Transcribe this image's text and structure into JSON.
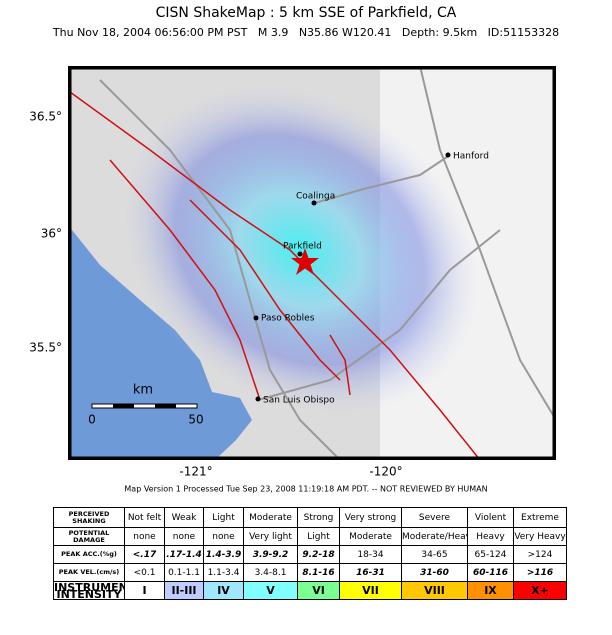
{
  "header": {
    "title": "CISN ShakeMap :   5 km SSE of Parkfield, CA",
    "subtitle": "Thu Nov 18, 2004 06:56:00 PM PST   M 3.9   N35.86 W120.41   Depth: 9.5km   ID:51153328"
  },
  "map": {
    "lat_labels": [
      "36.5°",
      "36°",
      "35.5°"
    ],
    "lon_labels": [
      "-121°",
      "-120°"
    ],
    "cities": [
      "Hanford",
      "Coalinga",
      "Parkfield",
      "Paso Robles",
      "San Luis Obispo"
    ],
    "scale": {
      "unit": "km",
      "start": "0",
      "end": "50"
    }
  },
  "footer": "Map Version 1 Processed Tue Sep 23, 2008 11:19:18 AM PDT. -- NOT REVIEWED BY HUMAN",
  "legend_table": {
    "rows": [
      [
        "PERCEIVED SHAKING",
        "Not felt",
        "Weak",
        "Light",
        "Moderate",
        "Strong",
        "Very strong",
        "Severe",
        "Violent",
        "Extreme"
      ],
      [
        "POTENTIAL DAMAGE",
        "none",
        "none",
        "none",
        "Very light",
        "Light",
        "Moderate",
        "Moderate/Heavy",
        "Heavy",
        "Very Heavy"
      ],
      [
        "PEAK ACC.(%g)",
        "<.17",
        ".17-1.4",
        "1.4-3.9",
        "3.9-9.2",
        "9.2-18",
        "18-34",
        "34-65",
        "65-124",
        ">124"
      ],
      [
        "PEAK VEL.(cm/s)",
        "<0.1",
        "0.1-1.1",
        "1.1-3.4",
        "3.4-8.1",
        "8.1-16",
        "16-31",
        "31-60",
        "60-116",
        ">116"
      ],
      [
        "INSTRUMENTAL INTENSITY",
        "I",
        "II-III",
        "IV",
        "V",
        "VI",
        "VII",
        "VIII",
        "IX",
        "X+"
      ]
    ]
  }
}
